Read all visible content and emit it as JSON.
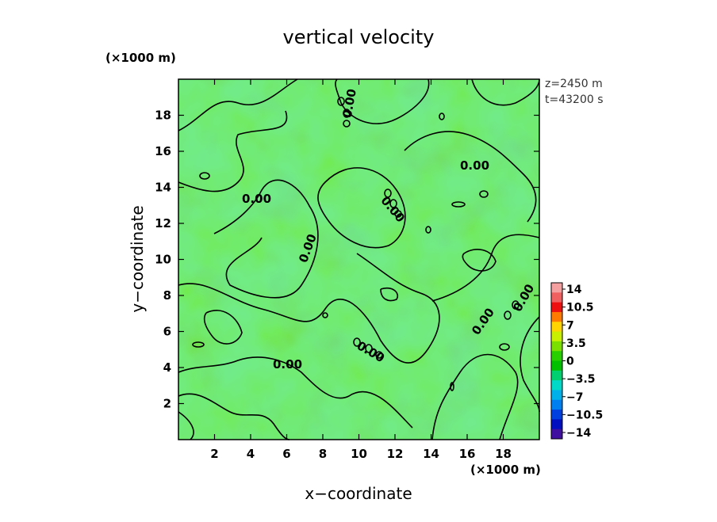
{
  "chart_data": {
    "type": "heatmap",
    "title": "vertical velocity",
    "xlabel": "x−coordinate",
    "ylabel": "y−coordinate",
    "x_unit": "(×1000 m)",
    "y_unit": "(×1000 m)",
    "xlim": [
      0,
      20
    ],
    "ylim": [
      0,
      20
    ],
    "x_ticks": [
      2,
      4,
      6,
      8,
      10,
      12,
      14,
      16,
      18
    ],
    "y_ticks": [
      2,
      4,
      6,
      8,
      10,
      12,
      14,
      16,
      18
    ],
    "x_tick_labels": [
      "2",
      "4",
      "6",
      "8",
      "10",
      "12",
      "14",
      "16",
      "18"
    ],
    "y_tick_labels": [
      "2",
      "4",
      "6",
      "8",
      "10",
      "12",
      "14",
      "16",
      "18"
    ],
    "annotations": [
      "z=2450 m",
      "t=43200 s"
    ],
    "contour_level": 0,
    "contour_labels": [
      "0.00",
      "0.00",
      "0.00",
      "0.00",
      "0.00",
      "0.00",
      "0.00",
      "0.00",
      "0.00"
    ],
    "colorbar": {
      "ticks": [
        "14",
        "10.5",
        "7",
        "3.5",
        "0",
        "−3.5",
        "−7",
        "−10.5",
        "−14"
      ],
      "values": [
        14,
        10.5,
        7,
        3.5,
        0,
        -3.5,
        -7,
        -10.5,
        -14
      ],
      "colors": [
        "#f4a0a0",
        "#f06060",
        "#ee1010",
        "#ff7a00",
        "#ffd400",
        "#c8f000",
        "#7be000",
        "#28d000",
        "#00c000",
        "#00d070",
        "#00d8c8",
        "#00b0e8",
        "#0080f0",
        "#0040e0",
        "#0010c0",
        "#4010a0"
      ]
    },
    "field_colors": {
      "base": "#5ce35a",
      "high": "#a6ea3c",
      "low": "#3fe1a0"
    }
  }
}
